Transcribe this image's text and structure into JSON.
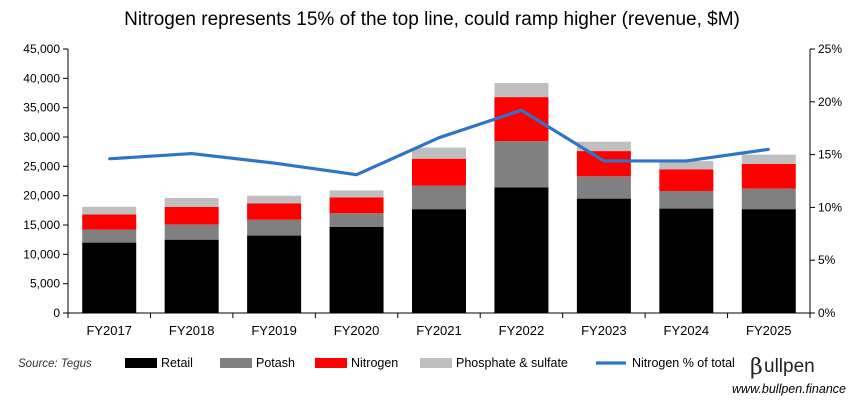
{
  "chart_data": {
    "type": "bar",
    "stacked": true,
    "title": "Nitrogen represents 15% of the top line, could ramp higher (revenue, $M)",
    "categories": [
      "FY2017",
      "FY2018",
      "FY2019",
      "FY2020",
      "FY2021",
      "FY2022",
      "FY2023",
      "FY2024",
      "FY2025"
    ],
    "series": [
      {
        "name": "Retail",
        "color": "#000000",
        "values": [
          12000,
          12500,
          13200,
          14700,
          17700,
          21400,
          19500,
          17800,
          17700
        ]
      },
      {
        "name": "Potash",
        "color": "#808080",
        "values": [
          2200,
          2600,
          2700,
          2300,
          4000,
          7900,
          3800,
          3000,
          3500
        ]
      },
      {
        "name": "Nitrogen",
        "color": "#ff0000",
        "values": [
          2600,
          3000,
          2800,
          2700,
          4600,
          7500,
          4300,
          3700,
          4200
        ]
      },
      {
        "name": "Phosphate & sulfate",
        "color": "#bfbfbf",
        "values": [
          1300,
          1500,
          1300,
          1200,
          1900,
          2400,
          1600,
          1400,
          1600
        ]
      }
    ],
    "line_series": {
      "name": "Nitrogen % of total",
      "color": "#2e75c8",
      "axis": "right",
      "values": [
        14.6,
        15.1,
        14.2,
        13.1,
        16.6,
        19.2,
        14.4,
        14.4,
        15.5
      ]
    },
    "ylim": [
      0,
      45000
    ],
    "yticks": [
      "0",
      "5,000",
      "10,000",
      "15,000",
      "20,000",
      "25,000",
      "30,000",
      "35,000",
      "40,000",
      "45,000"
    ],
    "y2lim": [
      0,
      25
    ],
    "y2ticks": [
      "0%",
      "5%",
      "10%",
      "15%",
      "20%",
      "25%"
    ],
    "xlabel": "",
    "ylabel": "",
    "grid": false,
    "legend": "bottom"
  },
  "footer": {
    "source": "Source: Tegus",
    "brand_initial": "β",
    "brand_rest": "ullpen",
    "url": "www.bullpen.finance"
  }
}
